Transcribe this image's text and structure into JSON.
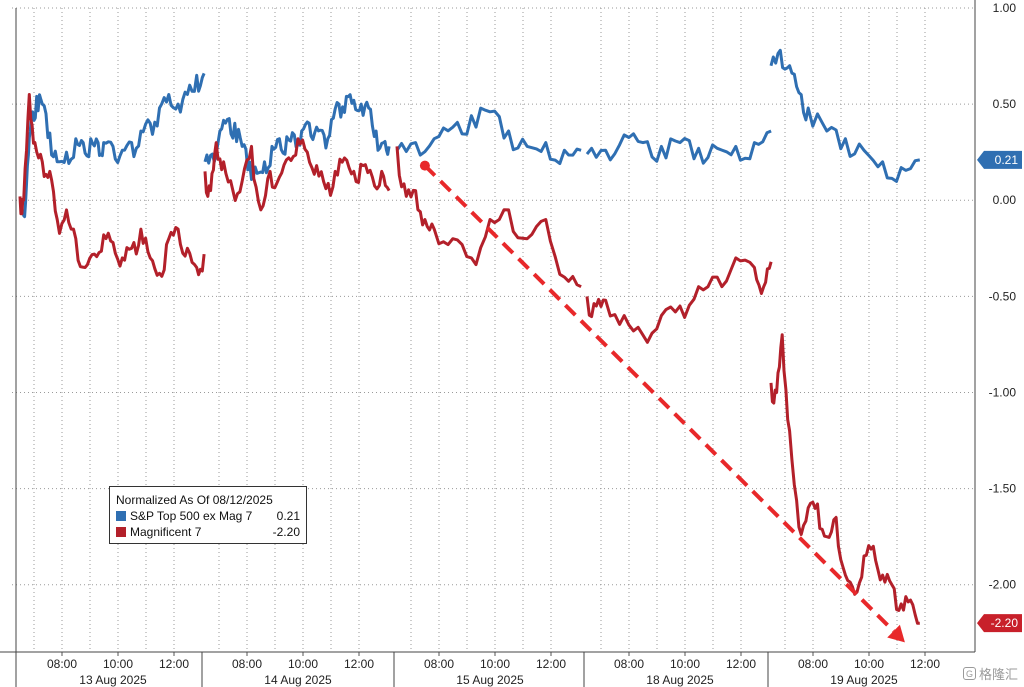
{
  "chart_data": {
    "type": "line",
    "title": "",
    "xlabel": "",
    "ylabel": "",
    "ylim": [
      -2.35,
      1.0
    ],
    "y_ticks": [
      1.0,
      0.5,
      0.0,
      -0.5,
      -1.0,
      -1.5,
      -2.0
    ],
    "y_tick_labels": [
      "1.00",
      "0.50",
      "0.00",
      "-0.50",
      "-1.00",
      "-1.50",
      "-2.00"
    ],
    "x_tick_labels": [
      "08:00",
      "10:00",
      "12:00",
      "08:00",
      "10:00",
      "12:00",
      "08:00",
      "10:00",
      "12:00",
      "08:00",
      "10:00",
      "12:00",
      "08:00",
      "10:00",
      "12:00"
    ],
    "day_labels": [
      "13 Aug 2025",
      "14 Aug 2025",
      "15 Aug 2025",
      "18 Aug 2025",
      "19 Aug 2025"
    ],
    "grid": true,
    "legend": {
      "position": "bottom-left",
      "header": "Normalized As Of 08/12/2025",
      "entries": [
        {
          "name": "S&P Top 500 ex Mag 7",
          "value": "0.21",
          "color": "#2f6fb2"
        },
        {
          "name": "Magnificent 7",
          "value": "-2.20",
          "color": "#b3202a"
        }
      ]
    },
    "last_value_labels": [
      {
        "text": "0.21",
        "value": 0.21,
        "color": "#2f6fb2"
      },
      {
        "text": "-2.20",
        "value": -2.2,
        "color": "#c8202a"
      }
    ],
    "series": [
      {
        "name": "S&P Top 500 ex Mag 7",
        "color": "#2f6fb2",
        "x": [
          0,
          0.02,
          0.04,
          0.06,
          0.09,
          0.12,
          0.16,
          0.2,
          0.25,
          0.3,
          0.34,
          0.38,
          0.42,
          0.45,
          0.5,
          0.55,
          0.6,
          0.65,
          0.7,
          0.75,
          0.8,
          0.85,
          0.9,
          0.95,
          0.99,
          1.0,
          1.04,
          1.08,
          1.12,
          1.16,
          1.2,
          1.24,
          1.28,
          1.32,
          1.36,
          1.4,
          1.44,
          1.48,
          1.52,
          1.56,
          1.6,
          1.64,
          1.68,
          1.72,
          1.76,
          1.8,
          1.84,
          1.88,
          1.92,
          1.96,
          1.99,
          2.0,
          2.1,
          2.2,
          2.3,
          2.4,
          2.5,
          2.6,
          2.7,
          2.8,
          2.9,
          2.99,
          3.0,
          3.1,
          3.2,
          3.3,
          3.4,
          3.5,
          3.6,
          3.7,
          3.8,
          3.9,
          3.99,
          4.0,
          4.05,
          4.1,
          4.15,
          4.2,
          4.3,
          4.4,
          4.5,
          4.6,
          4.7,
          4.8
        ],
        "values": [
          0.0,
          -0.08,
          0.18,
          0.42,
          0.54,
          0.5,
          0.35,
          0.2,
          0.25,
          0.32,
          0.3,
          0.32,
          0.3,
          0.3,
          0.28,
          0.26,
          0.3,
          0.36,
          0.4,
          0.48,
          0.55,
          0.5,
          0.55,
          0.65,
          0.66,
          0.2,
          0.24,
          0.36,
          0.42,
          0.4,
          0.28,
          0.2,
          0.14,
          0.2,
          0.28,
          0.32,
          0.33,
          0.34,
          0.36,
          0.4,
          0.38,
          0.34,
          0.42,
          0.5,
          0.54,
          0.52,
          0.5,
          0.48,
          0.36,
          0.3,
          0.28,
          0.26,
          0.3,
          0.32,
          0.38,
          0.44,
          0.46,
          0.36,
          0.28,
          0.3,
          0.26,
          0.26,
          0.24,
          0.26,
          0.34,
          0.3,
          0.28,
          0.3,
          0.27,
          0.27,
          0.28,
          0.3,
          0.36,
          0.7,
          0.78,
          0.7,
          0.56,
          0.48,
          0.36,
          0.32,
          0.26,
          0.2,
          0.17,
          0.21
        ]
      },
      {
        "name": "Magnificent 7",
        "color": "#b3202a",
        "x": [
          0,
          0.02,
          0.05,
          0.08,
          0.12,
          0.16,
          0.2,
          0.25,
          0.3,
          0.35,
          0.4,
          0.45,
          0.5,
          0.55,
          0.6,
          0.65,
          0.7,
          0.75,
          0.8,
          0.85,
          0.9,
          0.95,
          0.99,
          1.0,
          1.03,
          1.06,
          1.1,
          1.15,
          1.2,
          1.25,
          1.3,
          1.35,
          1.4,
          1.45,
          1.5,
          1.55,
          1.6,
          1.65,
          1.7,
          1.75,
          1.8,
          1.85,
          1.9,
          1.95,
          1.99,
          2.0,
          2.05,
          2.1,
          2.15,
          2.2,
          2.3,
          2.4,
          2.5,
          2.6,
          2.7,
          2.8,
          2.9,
          2.99,
          3.0,
          3.05,
          3.1,
          3.2,
          3.3,
          3.4,
          3.5,
          3.6,
          3.7,
          3.8,
          3.9,
          3.95,
          3.99,
          4.0,
          4.03,
          4.06,
          4.1,
          4.15,
          4.2,
          4.25,
          4.3,
          4.35,
          4.4,
          4.45,
          4.5,
          4.55,
          4.6,
          4.65,
          4.7,
          4.75,
          4.8
        ],
        "values": [
          0.02,
          0.0,
          0.55,
          0.3,
          0.2,
          0.15,
          -0.1,
          -0.05,
          -0.2,
          -0.35,
          -0.28,
          -0.18,
          -0.22,
          -0.3,
          -0.25,
          -0.15,
          -0.3,
          -0.38,
          -0.2,
          -0.15,
          -0.25,
          -0.35,
          -0.28,
          0.15,
          0.05,
          0.3,
          0.2,
          0.05,
          0.1,
          0.28,
          -0.05,
          0.15,
          0.12,
          0.22,
          0.32,
          0.25,
          0.18,
          0.06,
          0.15,
          0.22,
          0.15,
          0.18,
          0.12,
          0.15,
          0.05,
          0.28,
          0.02,
          0.05,
          -0.1,
          -0.15,
          -0.2,
          -0.3,
          -0.1,
          -0.05,
          -0.2,
          -0.1,
          -0.4,
          -0.45,
          -0.5,
          -0.55,
          -0.52,
          -0.6,
          -0.7,
          -0.6,
          -0.55,
          -0.45,
          -0.4,
          -0.3,
          -0.35,
          -0.45,
          -0.32,
          -0.95,
          -1.0,
          -0.7,
          -1.2,
          -1.7,
          -1.6,
          -1.58,
          -1.75,
          -1.65,
          -1.95,
          -2.05,
          -1.85,
          -1.8,
          -1.95,
          -2.0,
          -2.1,
          -2.08,
          -2.2
        ]
      }
    ],
    "annotations": [
      {
        "type": "dashed-arrow",
        "color": "#e8282a",
        "from": {
          "x": 2.15,
          "y": 0.18
        },
        "to": {
          "x": 4.72,
          "y": -2.3
        }
      }
    ]
  },
  "watermark": {
    "icon": "G",
    "text": "格隆汇"
  }
}
